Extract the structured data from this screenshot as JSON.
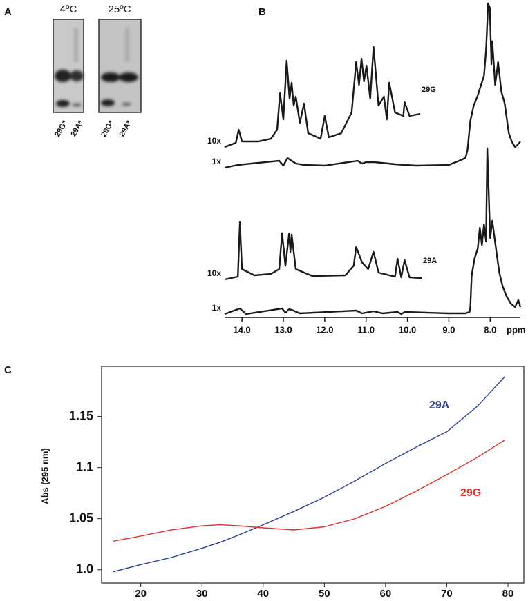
{
  "panel_labels": [
    "A",
    "B",
    "C"
  ],
  "gel": {
    "conditions": [
      {
        "label": "4ºC",
        "lanes": [
          "29G*",
          "29A*"
        ]
      },
      {
        "label": "25ºC",
        "lanes": [
          "29G*",
          "29A*"
        ]
      }
    ]
  },
  "chart_data": [
    {
      "type": "nmr",
      "xlabel": "ppm",
      "xlim": [
        14.42,
        7.27
      ],
      "xticks": [
        {
          "value": 14,
          "label": "14.0"
        },
        {
          "value": 13,
          "label": "13.0"
        },
        {
          "value": 12,
          "label": "12.0"
        },
        {
          "value": 11,
          "label": "11.0"
        },
        {
          "value": 10,
          "label": "10.0"
        },
        {
          "value": 9,
          "label": "9.0"
        },
        {
          "value": 8,
          "label": "8.0"
        }
      ],
      "color": "#1a1a1a",
      "panels": [
        {
          "label": "29G",
          "series": [
            {
              "name": "10x",
              "x": [
                14.42,
                14.15,
                14.08,
                14.0,
                13.6,
                13.3,
                13.15,
                13.08,
                13.0,
                12.92,
                12.85,
                12.8,
                12.75,
                12.7,
                12.6,
                12.5,
                12.4,
                12.1,
                12.0,
                11.9,
                11.6,
                11.35,
                11.24,
                11.17,
                11.11,
                11.05,
                10.99,
                10.9,
                10.82,
                10.7,
                10.57,
                10.5,
                10.44,
                10.3,
                10.1,
                10.07,
                9.95,
                9.69
              ],
              "values": [
                0,
                6,
                25,
                8,
                8,
                12,
                25,
                78,
                40,
                125,
                70,
                93,
                60,
                73,
                35,
                63,
                20,
                12,
                45,
                14,
                20,
                50,
                123,
                90,
                128,
                95,
                118,
                70,
                145,
                60,
                73,
                40,
                93,
                50,
                45,
                65,
                45,
                48
              ]
            },
            {
              "name": "1x",
              "x": [
                14.42,
                14.1,
                13.1,
                13.0,
                12.9,
                12.7,
                12.5,
                12.0,
                11.2,
                11.1,
                11.0,
                10.8,
                10.3,
                9.8,
                9.0,
                8.75,
                8.6,
                8.55,
                8.48,
                8.4,
                8.31,
                8.22,
                8.15,
                8.1,
                8.05,
                8.01,
                7.97,
                7.95,
                7.88,
                7.81,
                7.73,
                7.65,
                7.55,
                7.48,
                7.4,
                7.34,
                7.27
              ],
              "values": [
                0,
                4,
                10,
                3,
                14,
                6,
                4,
                3,
                10,
                6,
                8,
                8,
                5,
                3,
                4,
                10,
                14,
                25,
                68,
                90,
                103,
                120,
                133,
                170,
                238,
                232,
                150,
                183,
                120,
                153,
                110,
                93,
                50,
                38,
                30,
                33,
                38
              ]
            }
          ]
        },
        {
          "label": "29A",
          "series": [
            {
              "name": "10x",
              "x": [
                14.42,
                14.1,
                14.05,
                14.0,
                13.7,
                13.3,
                13.1,
                13.03,
                12.95,
                12.86,
                12.83,
                12.8,
                12.7,
                12.3,
                11.5,
                11.3,
                11.24,
                11.1,
                10.95,
                10.82,
                10.7,
                10.3,
                10.24,
                10.15,
                10.07,
                9.95,
                9.65
              ],
              "values": [
                0,
                4,
                83,
                15,
                6,
                8,
                15,
                67,
                20,
                67,
                40,
                65,
                15,
                5,
                6,
                20,
                47,
                25,
                15,
                40,
                10,
                4,
                30,
                3,
                28,
                3,
                2
              ]
            },
            {
              "name": "1x",
              "x": [
                14.42,
                14.05,
                13.9,
                13.03,
                12.95,
                12.86,
                12.8,
                12.6,
                11.24,
                11.1,
                10.82,
                10.6,
                10.24,
                10.15,
                10.07,
                9.0,
                8.6,
                8.5,
                8.48,
                8.45,
                8.38,
                8.3,
                8.25,
                8.2,
                8.15,
                8.1,
                8.07,
                8.0,
                7.95,
                7.85,
                7.78,
                7.7,
                7.6,
                7.5,
                7.4,
                7.32,
                7.27
              ],
              "values": [
                0,
                8,
                0,
                8,
                2,
                7,
                6,
                1,
                5,
                1,
                4,
                1,
                3,
                0,
                3,
                1,
                1,
                3,
                10,
                55,
                80,
                95,
                125,
                100,
                130,
                105,
                240,
                110,
                135,
                90,
                60,
                40,
                25,
                15,
                10,
                20,
                10
              ]
            }
          ]
        }
      ]
    },
    {
      "type": "line",
      "ylabel": "Abs (295 nm)",
      "xlim": [
        13.6,
        82.6
      ],
      "ylim": [
        0.987,
        1.199
      ],
      "xticks": [
        20,
        30,
        40,
        50,
        60,
        70,
        80
      ],
      "yticks": [
        {
          "value": 1,
          "label": "1.0"
        },
        1.05,
        1.1,
        1.15
      ],
      "x": [
        15.5,
        20,
        25,
        30,
        33,
        36,
        40,
        45,
        50,
        55,
        60,
        65,
        70,
        75,
        79.5
      ],
      "series": [
        {
          "name": "29A",
          "color": "#2e3f8f",
          "values": [
            0.998,
            1.005,
            1.012,
            1.021,
            1.027,
            1.034,
            1.044,
            1.057,
            1.071,
            1.087,
            1.104,
            1.12,
            1.135,
            1.16,
            1.189
          ]
        },
        {
          "name": "29G",
          "color": "#e0302a",
          "values": [
            1.028,
            1.033,
            1.039,
            1.043,
            1.044,
            1.043,
            1.041,
            1.039,
            1.042,
            1.05,
            1.062,
            1.077,
            1.093,
            1.11,
            1.127
          ]
        }
      ]
    }
  ]
}
